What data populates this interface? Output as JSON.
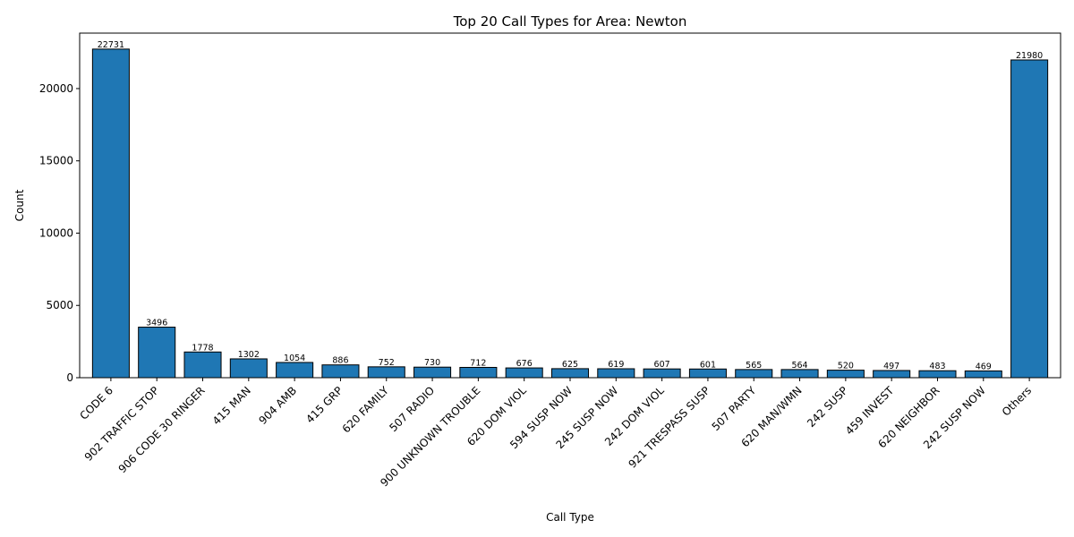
{
  "chart_data": {
    "type": "bar",
    "title": "Top 20 Call Types for Area: Newton",
    "xlabel": "Call Type",
    "ylabel": "Count",
    "ylim": [
      0,
      23836
    ],
    "yticks": [
      0,
      5000,
      10000,
      15000,
      20000
    ],
    "grid": false,
    "colors": {
      "bar": "#1f77b4",
      "edge": "#000000"
    },
    "categories": [
      "CODE 6",
      "902 TRAFFIC STOP",
      "906 CODE 30 RINGER",
      "415 MAN",
      "904 AMB",
      "415 GRP",
      "620 FAMILY",
      "507 RADIO",
      "900 UNKNOWN TROUBLE",
      "620 DOM VIOL",
      "594 SUSP NOW",
      "245 SUSP NOW",
      "242 DOM VIOL",
      "921 TRESPASS SUSP",
      "507 PARTY",
      "620 MAN/WMN",
      "242 SUSP",
      "459 INVEST",
      "620 NEIGHBOR",
      "242 SUSP NOW",
      "Others"
    ],
    "values": [
      22731,
      3496,
      1778,
      1302,
      1054,
      886,
      752,
      730,
      712,
      676,
      625,
      619,
      607,
      601,
      565,
      564,
      520,
      497,
      483,
      469,
      21980
    ]
  }
}
